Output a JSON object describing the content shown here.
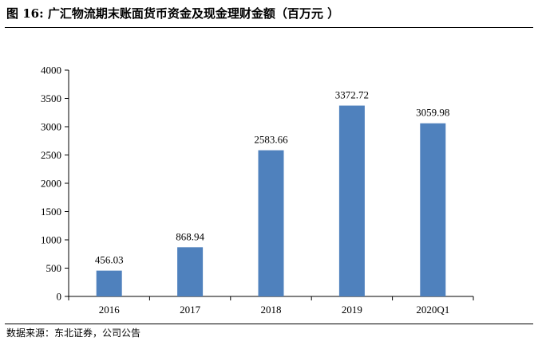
{
  "figure": {
    "title": "图 16: 广汇物流期末账面货币资金及现金理财金额（百万元 ）",
    "source": "数据来源：东北证券，公司公告"
  },
  "chart_data": {
    "type": "bar",
    "categories": [
      "2016",
      "2017",
      "2018",
      "2019",
      "2020Q1"
    ],
    "values": [
      456.03,
      868.94,
      2583.66,
      3372.72,
      3059.98
    ],
    "value_labels": [
      "456.03",
      "868.94",
      "2583.66",
      "3372.72",
      "3059.98"
    ],
    "yticks": [
      "0",
      "500",
      "1000",
      "1500",
      "2000",
      "2500",
      "3000",
      "3500",
      "4000"
    ],
    "ylim": [
      0,
      4000
    ],
    "grid": false,
    "bar_color": "#4f81bd"
  }
}
